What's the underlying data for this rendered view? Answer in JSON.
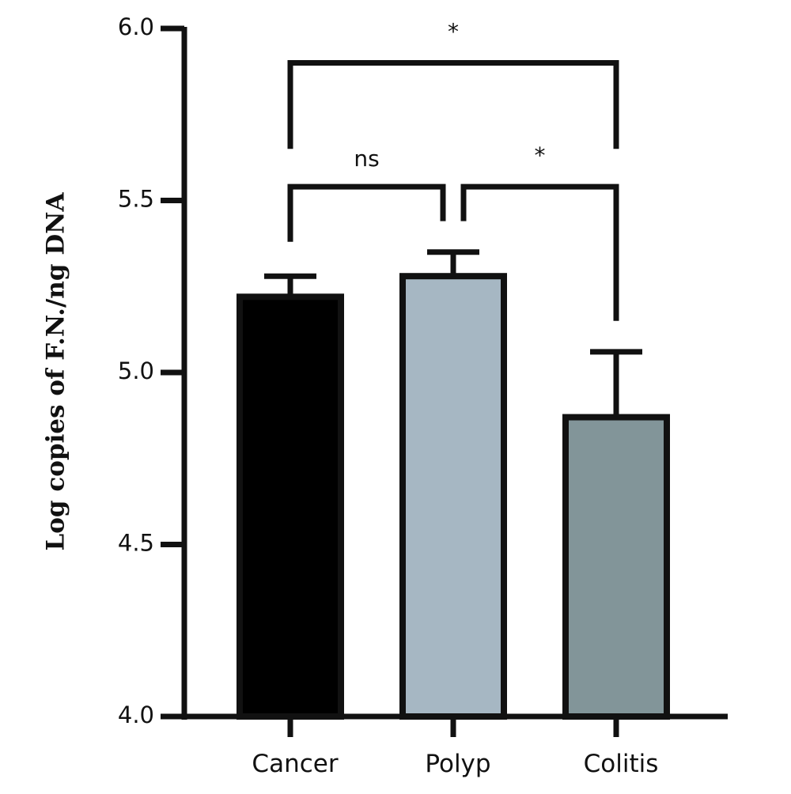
{
  "chart_data": {
    "type": "bar",
    "title": "",
    "xlabel": "",
    "ylabel": "Log copies of F.N./ng DNA",
    "ylim": [
      4.0,
      6.0
    ],
    "yticks": [
      {
        "value": 4.0,
        "label": "4.0"
      },
      {
        "value": 4.5,
        "label": "4.5"
      },
      {
        "value": 5.0,
        "label": "5.0"
      },
      {
        "value": 5.5,
        "label": "5.5"
      },
      {
        "value": 6.0,
        "label": "6.0"
      }
    ],
    "categories": [
      "Cancer",
      "Polyp",
      "Colitis"
    ],
    "values": [
      5.22,
      5.28,
      4.87
    ],
    "errors": [
      0.06,
      0.07,
      0.19
    ],
    "colors": [
      "#000000",
      "#a6b7c3",
      "#829599"
    ],
    "outline_color": "#111111",
    "grid": false,
    "legend": "none",
    "significance": [
      {
        "from": 0,
        "to": 1,
        "label": "ns",
        "y": 5.54,
        "left_drop": 5.38,
        "right_drop": 5.44
      },
      {
        "from": 1,
        "to": 2,
        "label": "*",
        "y": 5.54,
        "left_drop": 5.44,
        "right_drop": 5.15
      },
      {
        "from": 0,
        "to": 2,
        "label": "*",
        "y": 5.9,
        "left_drop": 5.65,
        "right_drop": 5.65
      }
    ]
  }
}
